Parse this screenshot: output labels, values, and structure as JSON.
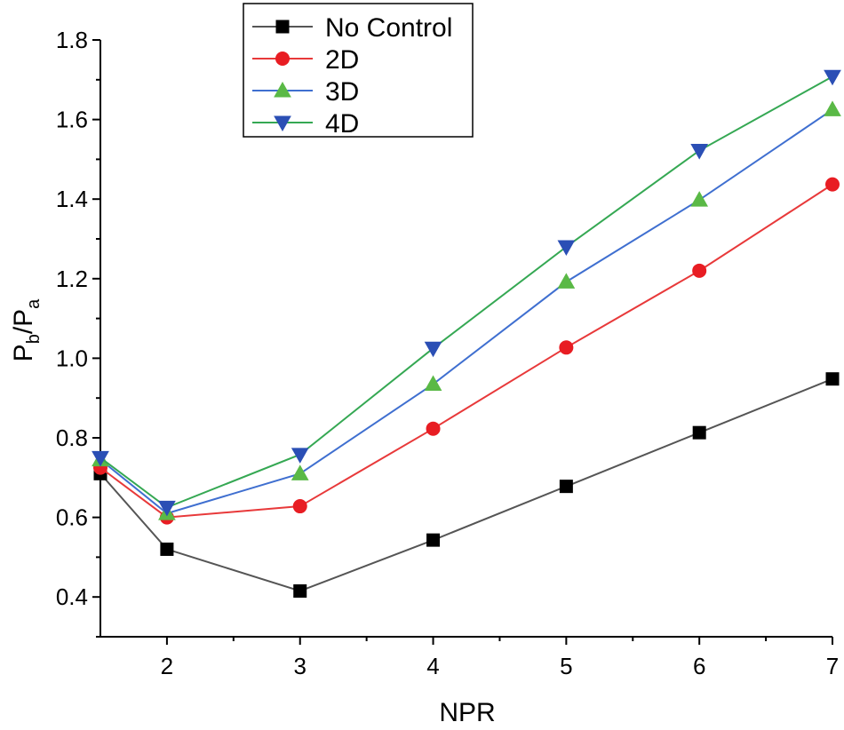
{
  "chart_data": {
    "type": "line",
    "title": "",
    "xlabel": "NPR",
    "ylabel_main": "P",
    "ylabel_sub1": "b",
    "ylabel_sep": "/P",
    "ylabel_sub2": "a",
    "xlim": [
      1.5,
      7
    ],
    "ylim": [
      0.3,
      1.8
    ],
    "xticks": [
      2,
      3,
      4,
      5,
      6,
      7
    ],
    "yticks": [
      0.4,
      0.6,
      0.8,
      1.0,
      1.2,
      1.4,
      1.6,
      1.8
    ],
    "ytick_labels": [
      "0.4",
      "0.6",
      "0.8",
      "1.0",
      "1.2",
      "1.4",
      "1.6",
      "1.8"
    ],
    "grid": false,
    "legend_position": "top-center",
    "x": [
      1.5,
      2,
      3,
      4,
      5,
      6,
      7
    ],
    "series": [
      {
        "name": "No Control",
        "marker": "square",
        "line_color": "#555555",
        "marker_color": "#000000",
        "values": [
          0.71,
          0.52,
          0.415,
          0.543,
          0.678,
          0.813,
          0.948
        ]
      },
      {
        "name": "2D",
        "marker": "circle",
        "line_color": "#e8393a",
        "marker_color": "#e81d23",
        "values": [
          0.725,
          0.6,
          0.628,
          0.823,
          1.027,
          1.22,
          1.437
        ]
      },
      {
        "name": "3D",
        "marker": "triangle-up",
        "line_color": "#3f6fd0",
        "marker_color": "#5ab946",
        "values": [
          0.745,
          0.61,
          0.71,
          0.935,
          1.192,
          1.398,
          1.625
        ]
      },
      {
        "name": "4D",
        "marker": "triangle-down",
        "line_color": "#35a853",
        "marker_color": "#2b4fb5",
        "values": [
          0.75,
          0.625,
          0.758,
          1.025,
          1.28,
          1.522,
          1.708
        ]
      }
    ]
  }
}
